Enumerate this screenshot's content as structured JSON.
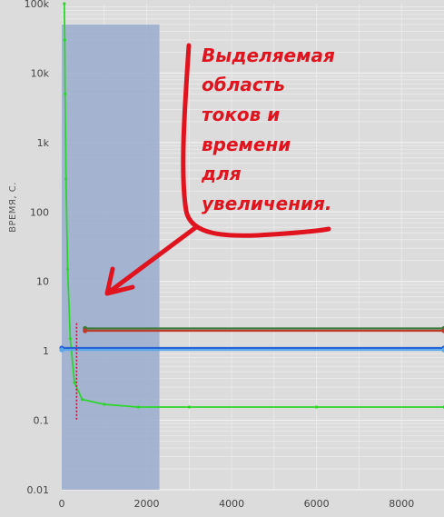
{
  "chart_data": {
    "type": "line",
    "ylabel": "ВРЕМЯ, С.",
    "xlabel": "",
    "y_scale": "log",
    "ylim": [
      0.01,
      100000
    ],
    "xlim": [
      0,
      9000
    ],
    "y_ticks": [
      "0.01",
      "0.1",
      "1",
      "10",
      "100",
      "1k",
      "10k",
      "100k"
    ],
    "x_ticks": [
      "0",
      "2000",
      "4000",
      "6000",
      "8000"
    ],
    "grid": true,
    "series": [
      {
        "color": "#2bd62b",
        "x": [
          60,
          70,
          80,
          100,
          140,
          200,
          300,
          480,
          1000,
          1800,
          3000,
          6000,
          9000
        ],
        "y": [
          100000,
          30000,
          5000,
          300,
          15,
          1.5,
          0.35,
          0.2,
          0.17,
          0.155,
          0.155,
          0.155,
          0.155
        ]
      },
      {
        "color": "#3a7a3a",
        "x": [
          550,
          9000
        ],
        "y": [
          2.1,
          2.1
        ]
      },
      {
        "color": "#c0392b",
        "x": [
          550,
          9000
        ],
        "y": [
          1.95,
          1.95
        ]
      },
      {
        "color": "#2563d6",
        "x": [
          0,
          9000
        ],
        "y": [
          1.1,
          1.1
        ]
      },
      {
        "color": "#5aa8e8",
        "x": [
          0,
          9000
        ],
        "y": [
          1.03,
          1.03
        ]
      }
    ],
    "selection": {
      "x": [
        0,
        2300
      ],
      "y": [
        0.01,
        50000
      ],
      "color": "#9aaccd"
    },
    "marker_line": {
      "x": 350,
      "y": [
        0.1,
        2.5
      ],
      "color": "#c0143c"
    }
  },
  "annotation": {
    "lines": [
      "Выделяемая",
      "область",
      "токов и",
      "времени",
      "для",
      "увеличения."
    ],
    "color": "#e0141e"
  }
}
